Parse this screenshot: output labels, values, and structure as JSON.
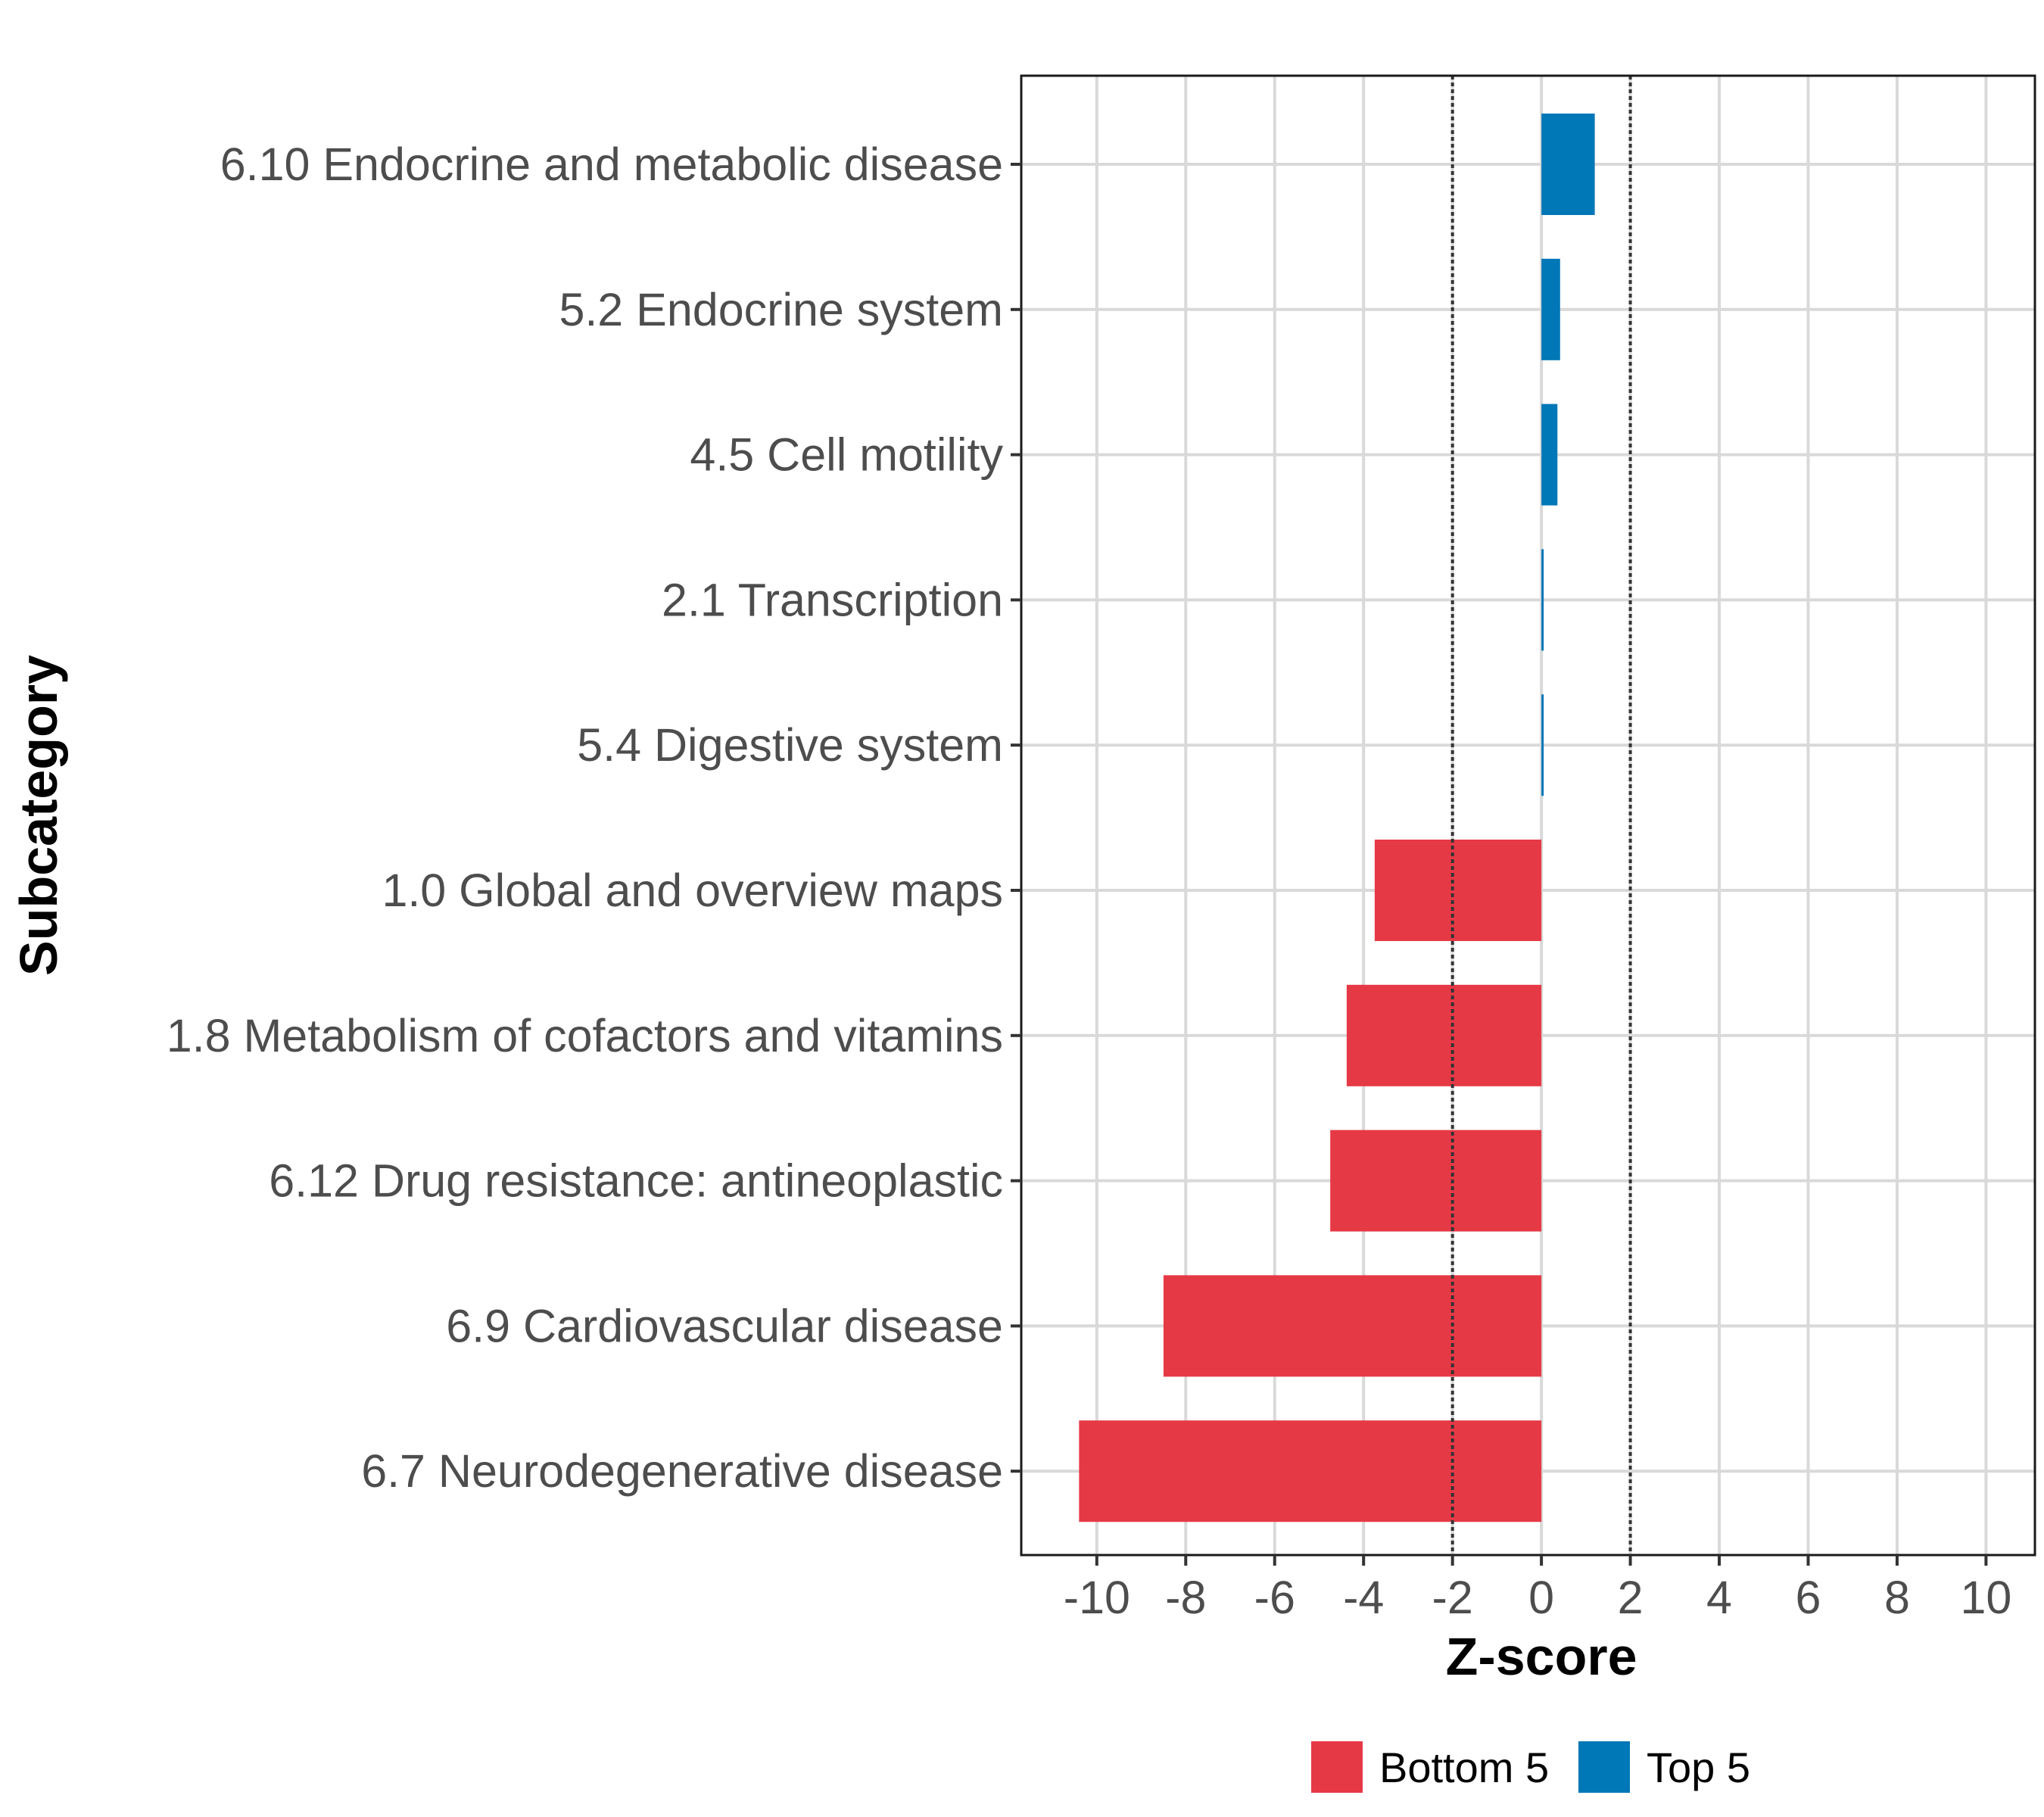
{
  "chart_data": {
    "type": "bar",
    "orientation": "horizontal",
    "title": "",
    "xlabel": "Z-score",
    "ylabel": "Subcategory",
    "xlim": [
      -11.7,
      11.1
    ],
    "x_ticks": [
      -10,
      -8,
      -6,
      -4,
      -2,
      0,
      2,
      4,
      6,
      8,
      10
    ],
    "x_tick_labels": [
      "-10",
      "-8",
      "-6",
      "-4",
      "-2",
      "0",
      "2",
      "4",
      "6",
      "8",
      "10"
    ],
    "reference_lines": [
      -2,
      2
    ],
    "grid": true,
    "legend_position": "bottom",
    "categories": [
      "6.10 Endocrine and metabolic disease",
      "5.2 Endocrine system",
      "4.5 Cell motility",
      "2.1 Transcription",
      "5.4 Digestive system",
      "1.0 Global and overview maps",
      "1.8 Metabolism of cofactors and vitamins",
      "6.12 Drug resistance: antineoplastic",
      "6.9 Cardiovascular disease",
      "6.7 Neurodegenerative disease"
    ],
    "values": [
      1.2,
      0.42,
      0.36,
      0.04,
      0.02,
      -3.75,
      -4.38,
      -4.75,
      -8.5,
      -10.4
    ],
    "groups": [
      "Top 5",
      "Top 5",
      "Top 5",
      "Top 5",
      "Top 5",
      "Bottom 5",
      "Bottom 5",
      "Bottom 5",
      "Bottom 5",
      "Bottom 5"
    ],
    "series": [
      {
        "name": "Bottom 5",
        "color": "#e63946"
      },
      {
        "name": "Top 5",
        "color": "#0077b6"
      }
    ]
  },
  "colors": {
    "bottom": "#e63946",
    "top": "#0077b6",
    "grid": "#d9d9d9",
    "panel_border": "#1a1a1a",
    "ref_line": "#333333"
  }
}
